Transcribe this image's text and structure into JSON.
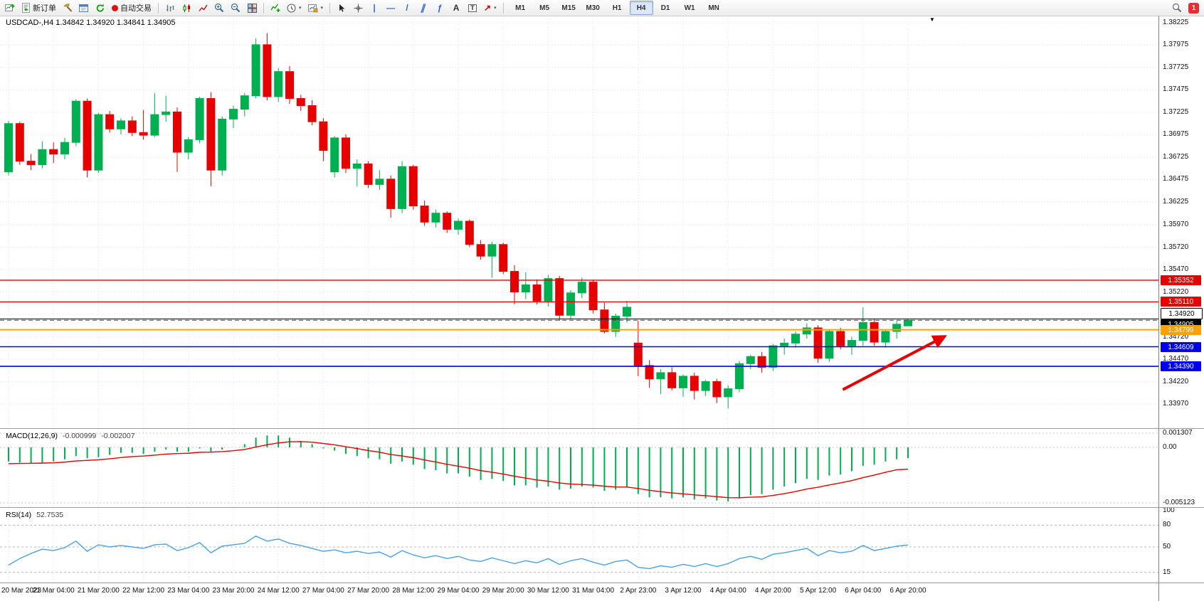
{
  "toolbar": {
    "new_order": "新订单",
    "autotrading": "自动交易",
    "timeframes": [
      "M1",
      "M5",
      "M15",
      "M30",
      "H1",
      "H4",
      "D1",
      "W1",
      "MN"
    ],
    "active_timeframe": "H4",
    "notification_count": "1",
    "icons": {
      "caret": "▾",
      "crosshair": "+",
      "vline": "|",
      "hline": "—",
      "trend": "/",
      "channel": "∥",
      "fibo": "ƒ",
      "text": "A",
      "label": "T",
      "arrows": "↗"
    }
  },
  "chart": {
    "header": "USDCAD-,H4  1.34842 1.34920 1.34841 1.34905",
    "shift_marker": "▼",
    "price_ticks": [
      "1.38225",
      "1.37975",
      "1.37725",
      "1.37475",
      "1.37225",
      "1.36975",
      "1.36725",
      "1.36475",
      "1.36225",
      "1.35970",
      "1.35720",
      "1.35470",
      "1.35220",
      "1.34970",
      "1.34720",
      "1.34470",
      "1.34220",
      "1.33970"
    ],
    "time_labels": [
      "20 Mar 2023",
      "21 Mar 04:00",
      "21 Mar 20:00",
      "22 Mar 12:00",
      "23 Mar 04:00",
      "23 Mar 20:00",
      "24 Mar 12:00",
      "27 Mar 04:00",
      "27 Mar 20:00",
      "28 Mar 12:00",
      "29 Mar 04:00",
      "29 Mar 20:00",
      "30 Mar 12:00",
      "31 Mar 04:00",
      "2 Apr 23:00",
      "3 Apr 12:00",
      "4 Apr 04:00",
      "4 Apr 20:00",
      "5 Apr 12:00",
      "6 Apr 04:00",
      "6 Apr 20:00"
    ]
  },
  "macd": {
    "label": "MACD(12,26,9)",
    "value_main": "-0.000999",
    "value_signal": "-0.002007",
    "scale": [
      "0.001307",
      "0.00",
      "-0.005123"
    ]
  },
  "rsi": {
    "label": "RSI(14)",
    "value": "52.7535",
    "scale": [
      "100",
      "80",
      "50",
      "15"
    ]
  },
  "chart_data": [
    {
      "type": "candlestick",
      "title": "USDCAD H4",
      "ylim": [
        1.339,
        1.3825
      ],
      "bull_color": "#00b050",
      "bear_color": "#e60000",
      "grid": true,
      "candles": [
        [
          1.3656,
          1.3713,
          1.3652,
          1.371
        ],
        [
          1.371,
          1.3712,
          1.3664,
          1.3668
        ],
        [
          1.3668,
          1.3676,
          1.3658,
          1.3664
        ],
        [
          1.3664,
          1.369,
          1.366,
          1.3681
        ],
        [
          1.3681,
          1.3689,
          1.3666,
          1.3676
        ],
        [
          1.3676,
          1.3694,
          1.367,
          1.3689
        ],
        [
          1.3689,
          1.3737,
          1.3685,
          1.3735
        ],
        [
          1.3735,
          1.3738,
          1.365,
          1.3658
        ],
        [
          1.3658,
          1.3722,
          1.3655,
          1.372
        ],
        [
          1.372,
          1.3724,
          1.37,
          1.3704
        ],
        [
          1.3704,
          1.3716,
          1.3698,
          1.3713
        ],
        [
          1.3713,
          1.3718,
          1.3696,
          1.37
        ],
        [
          1.37,
          1.3725,
          1.3692,
          1.3697
        ],
        [
          1.3697,
          1.3744,
          1.3695,
          1.372
        ],
        [
          1.372,
          1.3741,
          1.3712,
          1.3723
        ],
        [
          1.3723,
          1.3728,
          1.3656,
          1.3678
        ],
        [
          1.3678,
          1.3695,
          1.367,
          1.3692
        ],
        [
          1.3692,
          1.374,
          1.3688,
          1.3738
        ],
        [
          1.3738,
          1.3745,
          1.364,
          1.3658
        ],
        [
          1.3658,
          1.3718,
          1.3652,
          1.3715
        ],
        [
          1.3715,
          1.373,
          1.3705,
          1.3726
        ],
        [
          1.3726,
          1.3744,
          1.3718,
          1.3741
        ],
        [
          1.3741,
          1.3805,
          1.3738,
          1.3798
        ],
        [
          1.3798,
          1.3811,
          1.3736,
          1.374
        ],
        [
          1.374,
          1.3772,
          1.3734,
          1.3768
        ],
        [
          1.3768,
          1.3774,
          1.3732,
          1.3738
        ],
        [
          1.3738,
          1.3742,
          1.3724,
          1.373
        ],
        [
          1.373,
          1.3736,
          1.3708,
          1.3712
        ],
        [
          1.3712,
          1.3716,
          1.3668,
          1.368
        ],
        [
          1.3656,
          1.3696,
          1.365,
          1.3694
        ],
        [
          1.3694,
          1.3698,
          1.3655,
          1.366
        ],
        [
          1.366,
          1.367,
          1.364,
          1.3665
        ],
        [
          1.3665,
          1.3668,
          1.3638,
          1.3642
        ],
        [
          1.3642,
          1.3658,
          1.3636,
          1.3648
        ],
        [
          1.3648,
          1.3652,
          1.3605,
          1.3615
        ],
        [
          1.3615,
          1.3668,
          1.361,
          1.3662
        ],
        [
          1.3662,
          1.3664,
          1.3614,
          1.3618
        ],
        [
          1.3618,
          1.3624,
          1.3596,
          1.36
        ],
        [
          1.36,
          1.3614,
          1.3594,
          1.361
        ],
        [
          1.361,
          1.3612,
          1.3588,
          1.3592
        ],
        [
          1.3592,
          1.3604,
          1.3586,
          1.3601
        ],
        [
          1.3601,
          1.3603,
          1.3572,
          1.3575
        ],
        [
          1.3575,
          1.358,
          1.3558,
          1.3562
        ],
        [
          1.3562,
          1.3578,
          1.3538,
          1.3575
        ],
        [
          1.3575,
          1.3577,
          1.3542,
          1.3545
        ],
        [
          1.3545,
          1.3552,
          1.3508,
          1.3522
        ],
        [
          1.3522,
          1.3544,
          1.3514,
          1.353
        ],
        [
          1.353,
          1.3536,
          1.3508,
          1.3512
        ],
        [
          1.3512,
          1.3541,
          1.3506,
          1.3537
        ],
        [
          1.3537,
          1.354,
          1.349,
          1.3496
        ],
        [
          1.3496,
          1.3524,
          1.3492,
          1.3521
        ],
        [
          1.3521,
          1.3538,
          1.3515,
          1.3533
        ],
        [
          1.3533,
          1.3536,
          1.3498,
          1.3502
        ],
        [
          1.3502,
          1.351,
          1.3476,
          1.3478
        ],
        [
          1.3478,
          1.3498,
          1.3472,
          1.3495
        ],
        [
          1.3495,
          1.3512,
          1.3488,
          1.3505
        ],
        [
          1.3465,
          1.349,
          1.3428,
          1.344
        ],
        [
          1.344,
          1.3446,
          1.3415,
          1.3425
        ],
        [
          1.3425,
          1.3436,
          1.3408,
          1.3432
        ],
        [
          1.3432,
          1.3438,
          1.3412,
          1.3415
        ],
        [
          1.3415,
          1.343,
          1.3405,
          1.3428
        ],
        [
          1.3428,
          1.3432,
          1.3402,
          1.3412
        ],
        [
          1.3412,
          1.3424,
          1.3406,
          1.3422
        ],
        [
          1.3422,
          1.3425,
          1.3398,
          1.3405
        ],
        [
          1.3405,
          1.3418,
          1.3392,
          1.3414
        ],
        [
          1.3414,
          1.3445,
          1.341,
          1.3442
        ],
        [
          1.3442,
          1.3452,
          1.3436,
          1.345
        ],
        [
          1.345,
          1.3455,
          1.3432,
          1.3438
        ],
        [
          1.3438,
          1.3464,
          1.3434,
          1.3462
        ],
        [
          1.3462,
          1.347,
          1.3452,
          1.3465
        ],
        [
          1.3465,
          1.3478,
          1.346,
          1.3475
        ],
        [
          1.3475,
          1.3487,
          1.347,
          1.3482
        ],
        [
          1.3482,
          1.3485,
          1.3443,
          1.3448
        ],
        [
          1.3448,
          1.348,
          1.3444,
          1.3478
        ],
        [
          1.3478,
          1.3482,
          1.3458,
          1.3462
        ],
        [
          1.3462,
          1.3472,
          1.3452,
          1.3468
        ],
        [
          1.3468,
          1.3505,
          1.3462,
          1.3488
        ],
        [
          1.3488,
          1.3492,
          1.3462,
          1.3466
        ],
        [
          1.3466,
          1.348,
          1.346,
          1.3478
        ],
        [
          1.3478,
          1.349,
          1.347,
          1.3486
        ],
        [
          1.34842,
          1.3492,
          1.34841,
          1.34905
        ]
      ],
      "hlines": [
        {
          "price": 1.35352,
          "color": "#e60000",
          "width": 1.4,
          "style": "solid",
          "badge": "1.35352",
          "badge_bg": "#e60000",
          "badge_fg": "#ffffff"
        },
        {
          "price": 1.3511,
          "color": "#e60000",
          "width": 1.4,
          "style": "solid",
          "badge": "1.35110",
          "badge_bg": "#e60000",
          "badge_fg": "#ffffff"
        },
        {
          "price": 1.3492,
          "color": "#000000",
          "width": 1,
          "style": "solid",
          "badge": "1.34920",
          "badge_bg": "#ffffff",
          "badge_fg": "#000000",
          "badge_border": "#000000",
          "badge_dy": -8
        },
        {
          "price": 1.34905,
          "color": "#444444",
          "width": 1,
          "style": "dashed",
          "badge": "1.34905",
          "badge_bg": "#000000",
          "badge_fg": "#ffffff",
          "badge_dy": 6,
          "role": "bid"
        },
        {
          "price": 1.34799,
          "color": "#ffa200",
          "width": 2,
          "style": "solid",
          "badge": "1.34799",
          "badge_bg": "#ffa200",
          "badge_fg": "#ffffff"
        },
        {
          "price": 1.34609,
          "color": "#0000ee",
          "width": 1.6,
          "style": "solid",
          "badge": "1.34609",
          "badge_bg": "#0000ee",
          "badge_fg": "#ffffff"
        },
        {
          "price": 1.3439,
          "color": "#0000ee",
          "width": 1.6,
          "style": "solid",
          "badge": "1.34390",
          "badge_bg": "#0000ee",
          "badge_fg": "#ffffff"
        }
      ],
      "annotations": [
        {
          "type": "arrow",
          "from_index": 74.2,
          "from_price": 1.3413,
          "to_index": 83.2,
          "to_price": 1.3472,
          "color": "#e60000",
          "width": 4
        }
      ]
    },
    {
      "type": "bar",
      "name": "MACD(12,26,9)",
      "ylim": [
        -0.005123,
        0.001307
      ],
      "hist_color": "#00b050",
      "signal_color": "#e60000",
      "values": [
        -0.0013,
        -0.0014,
        -0.0015,
        -0.0014,
        -0.0013,
        -0.0011,
        -0.0008,
        -0.001,
        -0.0009,
        -0.0007,
        -0.0005,
        -0.0005,
        -0.0006,
        -0.0004,
        -0.0002,
        -0.0004,
        -0.0004,
        -0.0001,
        -0.0004,
        -0.0002,
        0.0,
        0.0003,
        0.0009,
        0.0011,
        0.0011,
        0.0009,
        0.0006,
        0.0003,
        -0.0001,
        -0.0003,
        -0.0006,
        -0.0008,
        -0.001,
        -0.0011,
        -0.0015,
        -0.0013,
        -0.0016,
        -0.002,
        -0.0021,
        -0.0024,
        -0.0024,
        -0.0027,
        -0.003,
        -0.0029,
        -0.0031,
        -0.0035,
        -0.0035,
        -0.0037,
        -0.0036,
        -0.0039,
        -0.0038,
        -0.0036,
        -0.0037,
        -0.004,
        -0.0039,
        -0.0037,
        -0.0043,
        -0.0046,
        -0.0046,
        -0.0047,
        -0.0046,
        -0.0048,
        -0.0047,
        -0.0049,
        -0.005,
        -0.0047,
        -0.0044,
        -0.0043,
        -0.0039,
        -0.0036,
        -0.0033,
        -0.0029,
        -0.003,
        -0.0026,
        -0.0025,
        -0.0022,
        -0.0017,
        -0.0016,
        -0.0013,
        -0.0011,
        -0.000999
      ],
      "signal": [
        -0.0015,
        -0.00148,
        -0.00147,
        -0.00145,
        -0.00142,
        -0.00136,
        -0.00125,
        -0.0012,
        -0.00114,
        -0.00105,
        -0.00094,
        -0.00085,
        -0.0008,
        -0.00072,
        -0.00062,
        -0.00057,
        -0.00054,
        -0.00045,
        -0.00044,
        -0.00039,
        -0.00031,
        -0.00019,
        3e-05,
        0.00024,
        0.00041,
        0.00051,
        0.00053,
        0.00048,
        0.00036,
        0.00023,
        6e-05,
        -0.00011,
        -0.00029,
        -0.00045,
        -0.00066,
        -0.00079,
        -0.00095,
        -0.00116,
        -0.00135,
        -0.00156,
        -0.00173,
        -0.00192,
        -0.00214,
        -0.00229,
        -0.00245,
        -0.00266,
        -0.00283,
        -0.003,
        -0.00312,
        -0.00328,
        -0.00338,
        -0.00342,
        -0.00348,
        -0.00358,
        -0.00365,
        -0.00366,
        -0.00379,
        -0.00395,
        -0.00408,
        -0.0042,
        -0.00428,
        -0.00438,
        -0.00445,
        -0.00454,
        -0.00463,
        -0.00464,
        -0.00459,
        -0.00456,
        -0.00443,
        -0.00426,
        -0.00407,
        -0.00384,
        -0.00367,
        -0.00346,
        -0.00327,
        -0.00306,
        -0.00279,
        -0.00255,
        -0.0023,
        -0.00206,
        -0.002007
      ]
    },
    {
      "type": "line",
      "name": "RSI(14)",
      "ylim": [
        0,
        100
      ],
      "levels": [
        80,
        50,
        15
      ],
      "color": "#4aa2e8",
      "values": [
        25,
        34,
        41,
        47,
        45,
        49,
        58,
        44,
        53,
        50,
        52,
        50,
        48,
        53,
        54,
        45,
        49,
        56,
        42,
        51,
        53,
        55,
        65,
        58,
        61,
        55,
        52,
        48,
        44,
        46,
        42,
        44,
        41,
        43,
        36,
        45,
        39,
        35,
        38,
        34,
        37,
        32,
        30,
        35,
        31,
        27,
        31,
        28,
        34,
        26,
        31,
        34,
        29,
        25,
        30,
        32,
        22,
        20,
        24,
        22,
        26,
        23,
        27,
        23,
        27,
        34,
        37,
        33,
        40,
        42,
        45,
        48,
        38,
        45,
        42,
        44,
        52,
        45,
        48,
        51,
        52.7535
      ]
    }
  ]
}
